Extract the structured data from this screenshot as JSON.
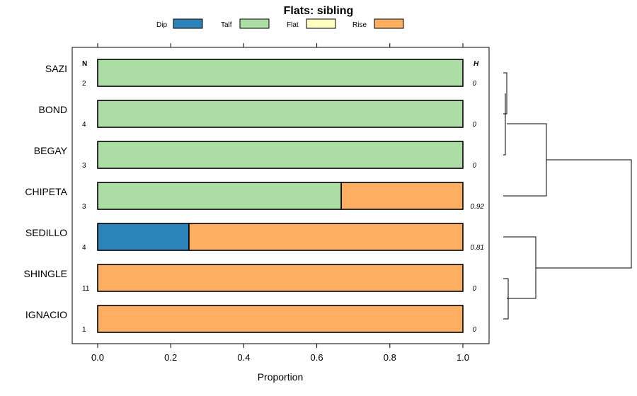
{
  "chart_data": {
    "type": "bar",
    "orientation": "horizontal",
    "stacked": true,
    "title": "Flats: sibling",
    "xlabel": "Proportion",
    "xlim": [
      0,
      1
    ],
    "xticks": [
      "0.0",
      "0.2",
      "0.4",
      "0.6",
      "0.8",
      "1.0"
    ],
    "legend_position": "top",
    "legend": [
      {
        "name": "Dip",
        "color": "#2b83ba"
      },
      {
        "name": "Talf",
        "color": "#abdda4"
      },
      {
        "name": "Flat",
        "color": "#ffffbf"
      },
      {
        "name": "Rise",
        "color": "#fdae61"
      }
    ],
    "n_header": "N",
    "h_header": "H",
    "categories": [
      "SAZI",
      "BOND",
      "BEGAY",
      "CHIPETA",
      "SEDILLO",
      "SHINGLE",
      "IGNACIO"
    ],
    "n": [
      "2",
      "4",
      "3",
      "3",
      "4",
      "11",
      "1"
    ],
    "h": [
      "0",
      "0",
      "0",
      "0.92",
      "0.81",
      "0",
      "0"
    ],
    "series": [
      {
        "name": "Dip",
        "values": [
          0,
          0,
          0,
          0,
          0.25,
          0,
          0
        ]
      },
      {
        "name": "Talf",
        "values": [
          1,
          1,
          1,
          0.667,
          0,
          0,
          0
        ]
      },
      {
        "name": "Flat",
        "values": [
          0,
          0,
          0,
          0,
          0,
          0,
          0
        ]
      },
      {
        "name": "Rise",
        "values": [
          0,
          0,
          0,
          0.333,
          0.75,
          1,
          1
        ]
      }
    ],
    "dendrogram": "hierarchical clustering of rows"
  }
}
